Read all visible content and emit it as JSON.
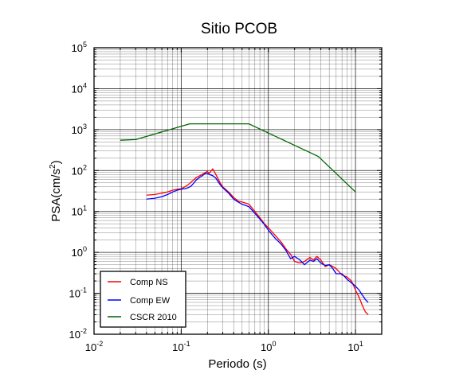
{
  "chart_data": {
    "type": "line",
    "title": "Sitio PCOB",
    "xlabel": "Periodo (s)",
    "ylabel_base": "PSA(cm/s",
    "ylabel_sup": "2",
    "ylabel_close": ")",
    "xscale": "log",
    "yscale": "log",
    "xlim": [
      0.01,
      20
    ],
    "ylim": [
      0.01,
      100000
    ],
    "grid": true,
    "legend_position": "bottom-left",
    "x_ticks": [
      {
        "value": 0.01,
        "base": "10",
        "exp": "-2"
      },
      {
        "value": 0.1,
        "base": "10",
        "exp": "-1"
      },
      {
        "value": 1,
        "base": "10",
        "exp": "0"
      },
      {
        "value": 10,
        "base": "10",
        "exp": "1"
      }
    ],
    "y_ticks": [
      {
        "value": 0.01,
        "base": "10",
        "exp": "-2"
      },
      {
        "value": 0.1,
        "base": "10",
        "exp": "-1"
      },
      {
        "value": 1,
        "base": "10",
        "exp": "0"
      },
      {
        "value": 10,
        "base": "10",
        "exp": "1"
      },
      {
        "value": 100,
        "base": "10",
        "exp": "2"
      },
      {
        "value": 1000,
        "base": "10",
        "exp": "3"
      },
      {
        "value": 10000,
        "base": "10",
        "exp": "4"
      },
      {
        "value": 100000,
        "base": "10",
        "exp": "5"
      }
    ],
    "series": [
      {
        "name": "Comp NS",
        "color": "#ff0000",
        "x": [
          0.04,
          0.05,
          0.06,
          0.07,
          0.08,
          0.09,
          0.1,
          0.11,
          0.12,
          0.13,
          0.14,
          0.15,
          0.17,
          0.19,
          0.2,
          0.21,
          0.23,
          0.25,
          0.28,
          0.3,
          0.35,
          0.4,
          0.45,
          0.5,
          0.55,
          0.6,
          0.7,
          0.8,
          0.9,
          1.0,
          1.2,
          1.4,
          1.6,
          1.8,
          2.0,
          2.3,
          2.6,
          3.0,
          3.3,
          3.6,
          4.0,
          4.5,
          5.0,
          5.5,
          6.0,
          7.0,
          8.0,
          9.0,
          10.0,
          11.0,
          12.0,
          13.0,
          14.0
        ],
        "y": [
          25,
          26,
          28,
          30,
          33,
          35,
          36,
          40,
          45,
          52,
          60,
          68,
          78,
          90,
          95,
          85,
          110,
          80,
          50,
          40,
          30,
          22,
          18,
          17,
          16,
          15,
          10,
          7,
          5,
          4,
          2.6,
          1.8,
          1.2,
          0.9,
          0.6,
          0.55,
          0.6,
          0.75,
          0.65,
          0.8,
          0.65,
          0.45,
          0.5,
          0.45,
          0.4,
          0.28,
          0.25,
          0.2,
          0.12,
          0.08,
          0.05,
          0.035,
          0.03
        ]
      },
      {
        "name": "Comp EW",
        "color": "#0000ff",
        "x": [
          0.04,
          0.05,
          0.06,
          0.07,
          0.08,
          0.09,
          0.1,
          0.11,
          0.12,
          0.13,
          0.14,
          0.15,
          0.17,
          0.19,
          0.2,
          0.21,
          0.23,
          0.25,
          0.28,
          0.3,
          0.35,
          0.4,
          0.45,
          0.5,
          0.55,
          0.6,
          0.7,
          0.8,
          0.9,
          1.0,
          1.2,
          1.4,
          1.6,
          1.8,
          2.0,
          2.3,
          2.6,
          3.0,
          3.3,
          3.6,
          4.0,
          4.5,
          5.0,
          5.5,
          6.0,
          7.0,
          8.0,
          9.0,
          10.0,
          11.0,
          12.0,
          13.0,
          14.0
        ],
        "y": [
          20,
          21,
          23,
          26,
          30,
          33,
          35,
          36,
          38,
          42,
          50,
          60,
          72,
          85,
          85,
          80,
          75,
          65,
          45,
          38,
          28,
          20,
          17,
          15,
          14,
          13,
          9,
          6.5,
          4.8,
          3.5,
          2.2,
          1.6,
          1.1,
          0.7,
          0.8,
          0.65,
          0.5,
          0.65,
          0.6,
          0.7,
          0.55,
          0.48,
          0.5,
          0.4,
          0.3,
          0.3,
          0.22,
          0.18,
          0.15,
          0.12,
          0.09,
          0.07,
          0.06
        ]
      },
      {
        "name": "CSCR 2010",
        "color": "#006400",
        "x": [
          0.02,
          0.03,
          0.125,
          0.6,
          3.75,
          10
        ],
        "y": [
          550,
          570,
          1380,
          1380,
          220,
          30
        ]
      }
    ]
  }
}
